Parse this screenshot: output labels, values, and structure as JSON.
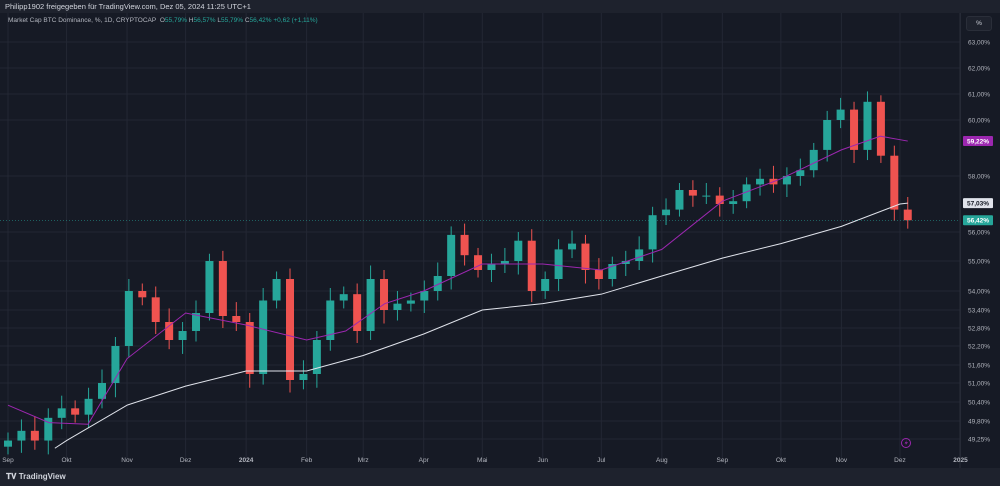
{
  "header": {
    "attribution": "Philipp1902 freigegeben für TradingView.com, Dez 05, 2024 11:25 UTC+1"
  },
  "legend": {
    "symbol": "Market Cap BTC Dominance, %, 1D, CRYPTOCAP",
    "o_label": "O",
    "o": "55,79%",
    "h_label": "H",
    "h": "56,57%",
    "l_label": "L",
    "l": "55,79%",
    "c_label": "C",
    "c": "56,42%",
    "change": "+0,62 (+1,11%)"
  },
  "unit_button": "%",
  "branding": "TradingView",
  "colors": {
    "up": "#26a69a",
    "down": "#ef5350",
    "ma_short": "#9c27b0",
    "ma_long": "#e0e3eb",
    "background": "#161a25"
  },
  "chart_data": {
    "type": "candlestick",
    "interval": "1W (approximated from daily candles)",
    "start": "2023-09-01",
    "end": "2024-12-05",
    "closes": [
      49.2,
      49.5,
      49.2,
      49.9,
      50.2,
      50.0,
      50.5,
      51.0,
      52.2,
      54.0,
      53.8,
      53.0,
      52.4,
      52.7,
      53.3,
      55.0,
      53.2,
      53.0,
      51.3,
      53.7,
      54.4,
      51.1,
      51.3,
      52.4,
      53.7,
      53.9,
      52.7,
      54.4,
      53.4,
      53.6,
      53.7,
      54.0,
      54.5,
      55.9,
      55.2,
      54.7,
      54.9,
      55.0,
      55.7,
      54.0,
      54.4,
      55.4,
      55.6,
      54.7,
      54.4,
      54.9,
      55.0,
      55.4,
      56.6,
      56.8,
      57.5,
      57.3,
      57.3,
      57.0,
      57.1,
      57.7,
      57.9,
      57.7,
      58.0,
      58.2,
      58.9,
      60.0,
      60.4,
      58.9,
      60.7,
      58.7,
      56.8,
      56.42
    ],
    "ma_short": {
      "dates": [
        "2023-09-01",
        "2023-09-22",
        "2023-10-12",
        "2023-11-01",
        "2023-12-01",
        "2024-01-01",
        "2024-02-01",
        "2024-02-21",
        "2024-03-12",
        "2024-04-01",
        "2024-05-01",
        "2024-06-01",
        "2024-07-01",
        "2024-08-01",
        "2024-09-01",
        "2024-10-01",
        "2024-11-01",
        "2024-11-21",
        "2024-12-05"
      ],
      "values": [
        50.3,
        49.75,
        49.7,
        51.8,
        53.3,
        52.9,
        52.4,
        52.7,
        53.6,
        54.0,
        54.9,
        54.9,
        54.7,
        55.4,
        57.1,
        57.9,
        58.9,
        59.4,
        59.22
      ]
    },
    "ma_long": {
      "dates": [
        "2023-09-25",
        "2023-10-01",
        "2023-11-01",
        "2023-12-01",
        "2024-01-01",
        "2024-02-01",
        "2024-03-01",
        "2024-04-01",
        "2024-05-01",
        "2024-06-01",
        "2024-07-01",
        "2024-08-01",
        "2024-09-01",
        "2024-10-01",
        "2024-11-01",
        "2024-12-01",
        "2024-12-05"
      ],
      "values": [
        48.95,
        49.2,
        50.3,
        50.9,
        51.4,
        51.4,
        51.9,
        52.6,
        53.4,
        53.6,
        53.9,
        54.5,
        55.1,
        55.6,
        56.2,
        57.0,
        57.03
      ]
    },
    "y_ticks": [
      "63,00%",
      "62,00%",
      "61,00%",
      "60,00%",
      "58,00%",
      "56,00%",
      "55,00%",
      "54,00%",
      "53,40%",
      "52,80%",
      "52,20%",
      "51,60%",
      "51,00%",
      "50,40%",
      "49,80%",
      "49,25%"
    ],
    "x_ticks": [
      "Sep",
      "Okt",
      "Nov",
      "Dez",
      "2024",
      "Feb",
      "Mrz",
      "Apr",
      "Mai",
      "Jun",
      "Jul",
      "Aug",
      "Sep",
      "Okt",
      "Nov",
      "Dez",
      "2025"
    ],
    "price_labels": {
      "ma_short": "59,22%",
      "ma_long": "57,03%",
      "last": "56,42%"
    },
    "scale": "logarithmic-like (irregular tick spacing)"
  }
}
